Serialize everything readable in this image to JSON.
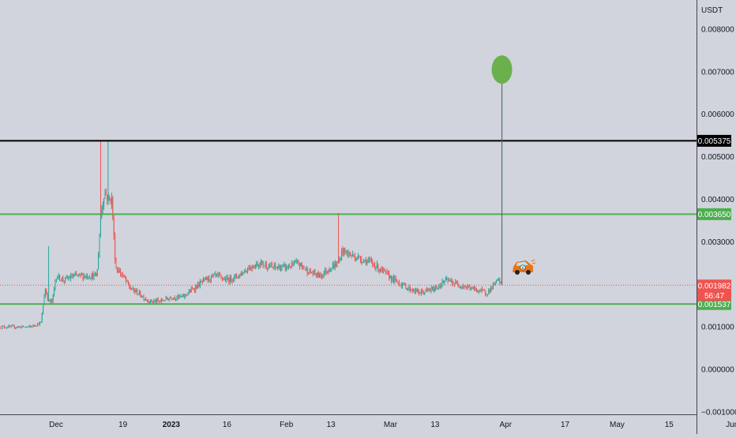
{
  "chart_data": {
    "type": "candlestick",
    "currency": "USDT",
    "ylim": [
      -0.001,
      0.0085
    ],
    "y_ticks": [
      "0.008000",
      "0.007000",
      "0.006000",
      "0.005000",
      "0.004000",
      "0.003000",
      "0.001000",
      "0.000000",
      "−0.001000"
    ],
    "y_tick_values": [
      0.008,
      0.007,
      0.006,
      0.005,
      0.004,
      0.003,
      0.001,
      0.0,
      -0.001
    ],
    "x_ticks": [
      {
        "label": "Dec",
        "date": "2022-12-01",
        "bold": false
      },
      {
        "label": "19",
        "date": "2022-12-19",
        "bold": false
      },
      {
        "label": "2023",
        "date": "2023-01-01",
        "bold": true
      },
      {
        "label": "16",
        "date": "2023-01-16",
        "bold": false
      },
      {
        "label": "Feb",
        "date": "2023-02-01",
        "bold": false
      },
      {
        "label": "13",
        "date": "2023-02-13",
        "bold": false
      },
      {
        "label": "Mar",
        "date": "2023-03-01",
        "bold": false
      },
      {
        "label": "13",
        "date": "2023-03-13",
        "bold": false
      },
      {
        "label": "Apr",
        "date": "2023-04-01",
        "bold": false
      },
      {
        "label": "17",
        "date": "2023-04-17",
        "bold": false
      },
      {
        "label": "May",
        "date": "2023-05-01",
        "bold": false
      },
      {
        "label": "15",
        "date": "2023-05-15",
        "bold": false
      },
      {
        "label": "Jun",
        "date": "2023-06-01",
        "bold": false
      }
    ],
    "horizontal_lines": [
      {
        "price": 0.005375,
        "label": "0.005375",
        "color": "#000000"
      },
      {
        "price": 0.00365,
        "label": "0.003650",
        "color": "#4caf50"
      },
      {
        "price": 0.001537,
        "label": "0.001537",
        "color": "#4caf50"
      }
    ],
    "current_price": {
      "price": 0.001982,
      "label": "0.001982",
      "countdown": "56:47",
      "color": "#ef5350"
    },
    "target_marker": {
      "price": 0.00705,
      "color": "#6ab04c",
      "line_from_price": 0.00198
    },
    "price_path": [
      [
        "2022-11-24",
        0.001
      ],
      [
        "2022-11-27",
        0.0011
      ],
      [
        "2022-11-28",
        0.0019
      ],
      [
        "2022-11-29",
        0.0016
      ],
      [
        "2022-11-30",
        0.0016
      ],
      [
        "2022-12-01",
        0.0022
      ],
      [
        "2022-12-03",
        0.0021
      ],
      [
        "2022-12-06",
        0.0022
      ],
      [
        "2022-12-09",
        0.0022
      ],
      [
        "2022-12-12",
        0.0022
      ],
      [
        "2022-12-13",
        0.0036
      ],
      [
        "2022-12-14",
        0.0042
      ],
      [
        "2022-12-15",
        0.004
      ],
      [
        "2022-12-16",
        0.004
      ],
      [
        "2022-12-17",
        0.0024
      ],
      [
        "2022-12-19",
        0.0022
      ],
      [
        "2022-12-21",
        0.0019
      ],
      [
        "2022-12-23",
        0.0018
      ],
      [
        "2022-12-26",
        0.0016
      ],
      [
        "2022-12-29",
        0.0016
      ],
      [
        "2023-01-01",
        0.0017
      ],
      [
        "2023-01-04",
        0.0017
      ],
      [
        "2023-01-07",
        0.0019
      ],
      [
        "2023-01-10",
        0.0021
      ],
      [
        "2023-01-13",
        0.0022
      ],
      [
        "2023-01-16",
        0.0021
      ],
      [
        "2023-01-19",
        0.0022
      ],
      [
        "2023-01-22",
        0.0024
      ],
      [
        "2023-01-25",
        0.0025
      ],
      [
        "2023-01-28",
        0.0024
      ],
      [
        "2023-02-01",
        0.0024
      ],
      [
        "2023-02-04",
        0.0025
      ],
      [
        "2023-02-07",
        0.0023
      ],
      [
        "2023-02-10",
        0.0022
      ],
      [
        "2023-02-13",
        0.0024
      ],
      [
        "2023-02-15",
        0.0025
      ],
      [
        "2023-02-16",
        0.0028
      ],
      [
        "2023-02-18",
        0.0027
      ],
      [
        "2023-02-21",
        0.0026
      ],
      [
        "2023-02-24",
        0.0025
      ],
      [
        "2023-02-27",
        0.0023
      ],
      [
        "2023-03-02",
        0.0021
      ],
      [
        "2023-03-06",
        0.0019
      ],
      [
        "2023-03-09",
        0.0018
      ],
      [
        "2023-03-13",
        0.0019
      ],
      [
        "2023-03-16",
        0.0021
      ],
      [
        "2023-03-19",
        0.002
      ],
      [
        "2023-03-23",
        0.0019
      ],
      [
        "2023-03-27",
        0.0018
      ],
      [
        "2023-03-29",
        0.002
      ],
      [
        "2023-03-30",
        0.0021
      ],
      [
        "2023-03-31",
        0.00198
      ]
    ],
    "spikes": [
      {
        "date": "2022-11-29",
        "high": 0.0029
      },
      {
        "date": "2022-12-13",
        "high": 0.0054
      },
      {
        "date": "2022-12-15",
        "high": 0.0054
      },
      {
        "date": "2023-02-15",
        "high": 0.00368
      },
      {
        "date": "2023-03-31",
        "high": 0.0068
      }
    ]
  }
}
